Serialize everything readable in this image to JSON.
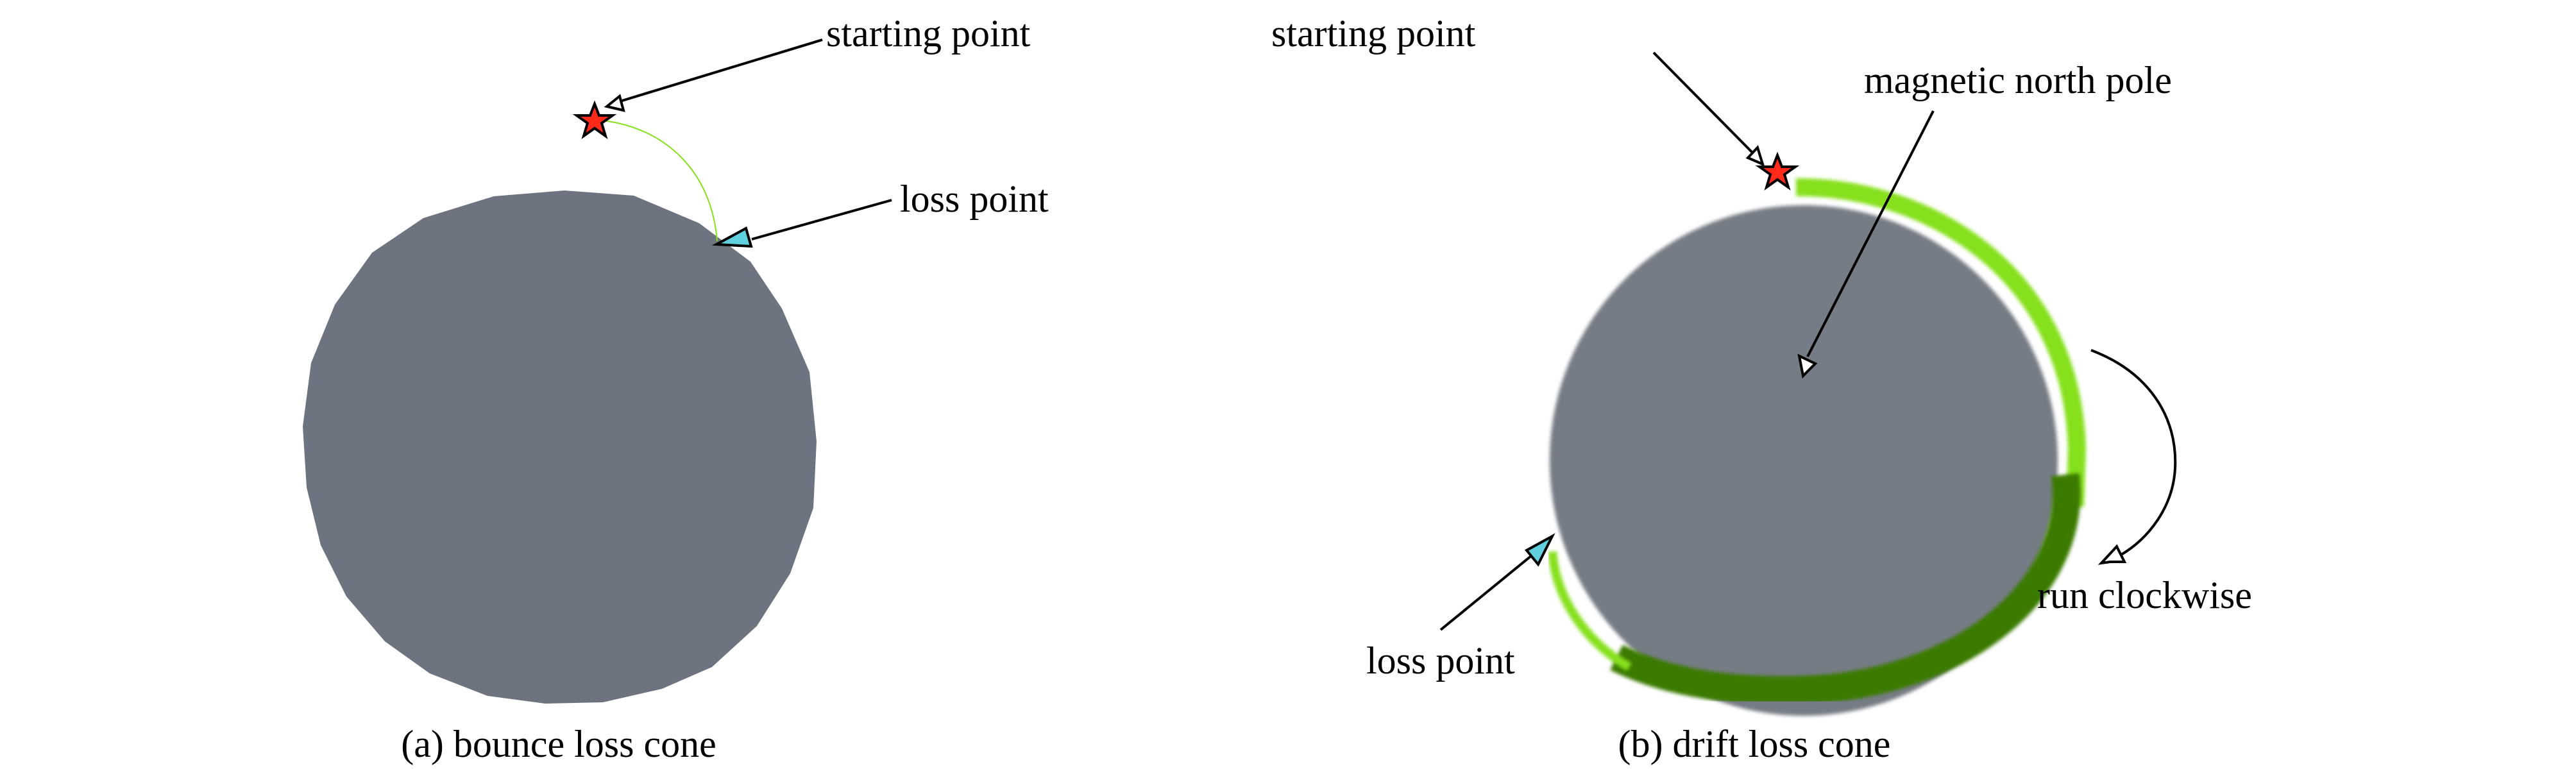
{
  "panels": [
    {
      "caption": "(a) bounce loss cone",
      "labels": {
        "starting_point": "starting point",
        "loss_point": "loss point"
      }
    },
    {
      "caption": "(b) drift loss cone",
      "labels": {
        "starting_point": "starting point",
        "magnetic_north_pole": "magnetic north pole",
        "loss_point": "loss point",
        "run_clockwise": "run clockwise"
      }
    }
  ],
  "colors": {
    "earth_disk": "#6e7380",
    "trajectory_light": "#86e01a",
    "trajectory_dark": "#3a7a00",
    "start_star": "#ff2a1a",
    "loss_triangle": "#5fd0dc"
  }
}
